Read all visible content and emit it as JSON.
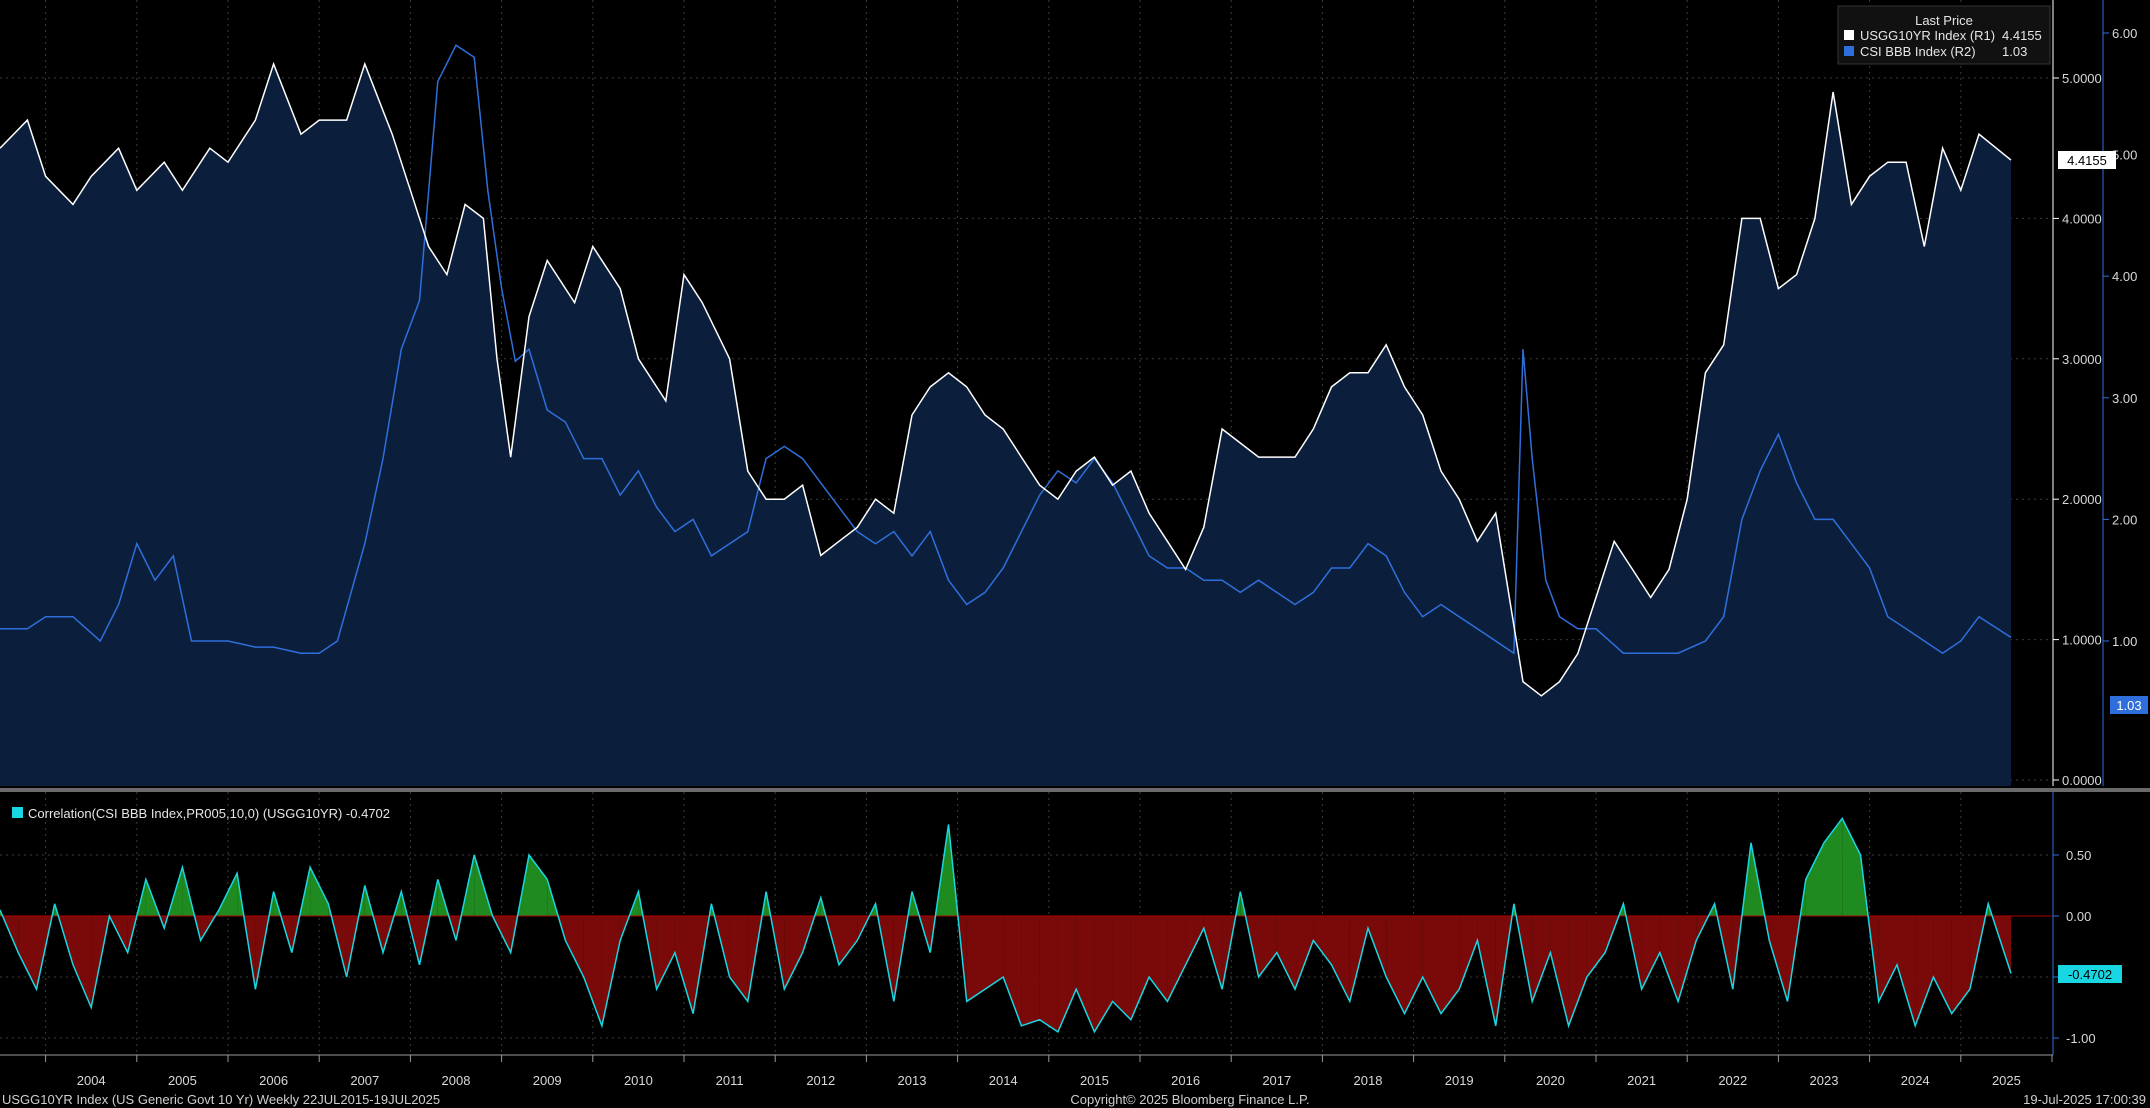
{
  "chart_data": [
    {
      "type": "line",
      "legend": {
        "title": "Last Price",
        "placement": "top-right",
        "entries": [
          {
            "label": "USGG10YR Index  (R1)",
            "value": "4.4155",
            "color": "#ffffff"
          },
          {
            "label": "CSI BBB Index  (R2)",
            "value": "1.03",
            "color": "#2f6fdb"
          }
        ]
      },
      "x_tick_labels": [
        "2004",
        "2005",
        "2006",
        "2007",
        "2008",
        "2009",
        "2010",
        "2011",
        "2012",
        "2013",
        "2014",
        "2015",
        "2016",
        "2017",
        "2018",
        "2019",
        "2020",
        "2021",
        "2022",
        "2023",
        "2024",
        "2025"
      ],
      "axis_r1": {
        "ticks": [
          "0.0000",
          "1.0000",
          "2.0000",
          "3.0000",
          "4.0000",
          "5.0000"
        ],
        "ylim": [
          0,
          5.0
        ],
        "last_label": "4.4155",
        "color": "#ffffff"
      },
      "axis_r2": {
        "ticks": [
          "1.00",
          "2.00",
          "3.00",
          "4.00",
          "5.00",
          "6.00"
        ],
        "ylim": [
          0.2,
          6.0
        ],
        "last_label": "1.03",
        "color": "#2f6fdb"
      },
      "grid": true,
      "series": [
        {
          "name": "USGG10YR Index",
          "axis": "R1",
          "color": "#ffffff",
          "area_fill": "#0b1f3d",
          "x": [
            2003.5,
            2003.8,
            2004.0,
            2004.3,
            2004.5,
            2004.8,
            2005.0,
            2005.3,
            2005.5,
            2005.8,
            2006.0,
            2006.3,
            2006.5,
            2006.8,
            2007.0,
            2007.3,
            2007.5,
            2007.8,
            2008.0,
            2008.2,
            2008.4,
            2008.6,
            2008.8,
            2008.95,
            2009.1,
            2009.3,
            2009.5,
            2009.8,
            2010.0,
            2010.3,
            2010.5,
            2010.8,
            2011.0,
            2011.2,
            2011.5,
            2011.7,
            2011.9,
            2012.1,
            2012.3,
            2012.5,
            2012.7,
            2012.9,
            2013.1,
            2013.3,
            2013.5,
            2013.7,
            2013.9,
            2014.1,
            2014.3,
            2014.5,
            2014.7,
            2014.9,
            2015.1,
            2015.3,
            2015.5,
            2015.7,
            2015.9,
            2016.1,
            2016.3,
            2016.5,
            2016.7,
            2016.9,
            2017.1,
            2017.3,
            2017.5,
            2017.7,
            2017.9,
            2018.1,
            2018.3,
            2018.5,
            2018.7,
            2018.9,
            2019.1,
            2019.3,
            2019.5,
            2019.7,
            2019.9,
            2020.1,
            2020.2,
            2020.4,
            2020.6,
            2020.8,
            2021.0,
            2021.2,
            2021.4,
            2021.6,
            2021.8,
            2022.0,
            2022.2,
            2022.4,
            2022.6,
            2022.8,
            2023.0,
            2023.2,
            2023.4,
            2023.6,
            2023.8,
            2024.0,
            2024.2,
            2024.4,
            2024.6,
            2024.8,
            2025.0,
            2025.2,
            2025.55
          ],
          "values": [
            4.5,
            4.7,
            4.3,
            4.1,
            4.3,
            4.5,
            4.2,
            4.4,
            4.2,
            4.5,
            4.4,
            4.7,
            5.1,
            4.6,
            4.7,
            4.7,
            5.1,
            4.6,
            4.2,
            3.8,
            3.6,
            4.1,
            4.0,
            3.0,
            2.3,
            3.3,
            3.7,
            3.4,
            3.8,
            3.5,
            3.0,
            2.7,
            3.6,
            3.4,
            3.0,
            2.2,
            2.0,
            2.0,
            2.1,
            1.6,
            1.7,
            1.8,
            2.0,
            1.9,
            2.6,
            2.8,
            2.9,
            2.8,
            2.6,
            2.5,
            2.3,
            2.1,
            2.0,
            2.2,
            2.3,
            2.1,
            2.2,
            1.9,
            1.7,
            1.5,
            1.8,
            2.5,
            2.4,
            2.3,
            2.3,
            2.3,
            2.5,
            2.8,
            2.9,
            2.9,
            3.1,
            2.8,
            2.6,
            2.2,
            2.0,
            1.7,
            1.9,
            1.1,
            0.7,
            0.6,
            0.7,
            0.9,
            1.3,
            1.7,
            1.5,
            1.3,
            1.5,
            2.0,
            2.9,
            3.1,
            4.0,
            4.0,
            3.5,
            3.6,
            4.0,
            4.9,
            4.1,
            4.3,
            4.4,
            4.4,
            3.8,
            4.5,
            4.2,
            4.6,
            4.4155
          ]
        },
        {
          "name": "CSI BBB Index",
          "axis": "R2",
          "color": "#2f6fdb",
          "x": [
            2003.5,
            2003.8,
            2004.0,
            2004.3,
            2004.6,
            2004.8,
            2005.0,
            2005.2,
            2005.4,
            2005.6,
            2005.8,
            2006.0,
            2006.3,
            2006.5,
            2006.8,
            2007.0,
            2007.2,
            2007.5,
            2007.7,
            2007.9,
            2008.1,
            2008.3,
            2008.5,
            2008.7,
            2008.85,
            2009.0,
            2009.15,
            2009.3,
            2009.5,
            2009.7,
            2009.9,
            2010.1,
            2010.3,
            2010.5,
            2010.7,
            2010.9,
            2011.1,
            2011.3,
            2011.5,
            2011.7,
            2011.9,
            2012.1,
            2012.3,
            2012.5,
            2012.7,
            2012.9,
            2013.1,
            2013.3,
            2013.5,
            2013.7,
            2013.9,
            2014.1,
            2014.3,
            2014.5,
            2014.7,
            2014.9,
            2015.1,
            2015.3,
            2015.5,
            2015.7,
            2015.9,
            2016.1,
            2016.3,
            2016.5,
            2016.7,
            2016.9,
            2017.1,
            2017.3,
            2017.5,
            2017.7,
            2017.9,
            2018.1,
            2018.3,
            2018.5,
            2018.7,
            2018.9,
            2019.1,
            2019.3,
            2019.5,
            2019.7,
            2019.9,
            2020.1,
            2020.2,
            2020.3,
            2020.45,
            2020.6,
            2020.8,
            2021.0,
            2021.3,
            2021.6,
            2021.9,
            2022.2,
            2022.4,
            2022.6,
            2022.8,
            2023.0,
            2023.2,
            2023.4,
            2023.6,
            2023.8,
            2024.0,
            2024.2,
            2024.4,
            2024.6,
            2024.8,
            2025.0,
            2025.2,
            2025.55
          ],
          "values": [
            1.1,
            1.1,
            1.2,
            1.2,
            1.0,
            1.3,
            1.8,
            1.5,
            1.7,
            1.0,
            1.0,
            1.0,
            0.95,
            0.95,
            0.9,
            0.9,
            1.0,
            1.8,
            2.5,
            3.4,
            3.8,
            5.6,
            5.9,
            5.8,
            4.7,
            3.9,
            3.3,
            3.4,
            2.9,
            2.8,
            2.5,
            2.5,
            2.2,
            2.4,
            2.1,
            1.9,
            2.0,
            1.7,
            1.8,
            1.9,
            2.5,
            2.6,
            2.5,
            2.3,
            2.1,
            1.9,
            1.8,
            1.9,
            1.7,
            1.9,
            1.5,
            1.3,
            1.4,
            1.6,
            1.9,
            2.2,
            2.4,
            2.3,
            2.5,
            2.3,
            2.0,
            1.7,
            1.6,
            1.6,
            1.5,
            1.5,
            1.4,
            1.5,
            1.4,
            1.3,
            1.4,
            1.6,
            1.6,
            1.8,
            1.7,
            1.4,
            1.2,
            1.3,
            1.2,
            1.1,
            1.0,
            0.9,
            3.4,
            2.5,
            1.5,
            1.2,
            1.1,
            1.1,
            0.9,
            0.9,
            0.9,
            1.0,
            1.2,
            2.0,
            2.4,
            2.7,
            2.3,
            2.0,
            2.0,
            1.8,
            1.6,
            1.2,
            1.1,
            1.0,
            0.9,
            1.0,
            1.2,
            1.03
          ]
        }
      ]
    },
    {
      "type": "area",
      "title": "Correlation(CSI BBB Index,PR005,10,0) (USGG10YR) -0.4702",
      "legend_color": "#19d7e2",
      "axis": {
        "ticks": [
          "-1.00",
          "-0.50",
          "0.00",
          "0.50"
        ],
        "ylim": [
          -1.1,
          0.85
        ],
        "last_label": "-0.4702"
      },
      "positive_fill": "#1f8a1f",
      "negative_fill": "#7a0a0a",
      "line_color": "#19d7e2",
      "series": [
        {
          "name": "Correlation",
          "x": [
            2003.5,
            2003.7,
            2003.9,
            2004.1,
            2004.3,
            2004.5,
            2004.7,
            2004.9,
            2005.1,
            2005.3,
            2005.5,
            2005.7,
            2005.9,
            2006.1,
            2006.3,
            2006.5,
            2006.7,
            2006.9,
            2007.1,
            2007.3,
            2007.5,
            2007.7,
            2007.9,
            2008.1,
            2008.3,
            2008.5,
            2008.7,
            2008.9,
            2009.1,
            2009.3,
            2009.5,
            2009.7,
            2009.9,
            2010.1,
            2010.3,
            2010.5,
            2010.7,
            2010.9,
            2011.1,
            2011.3,
            2011.5,
            2011.7,
            2011.9,
            2012.1,
            2012.3,
            2012.5,
            2012.7,
            2012.9,
            2013.1,
            2013.3,
            2013.5,
            2013.7,
            2013.9,
            2014.1,
            2014.3,
            2014.5,
            2014.7,
            2014.9,
            2015.1,
            2015.3,
            2015.5,
            2015.7,
            2015.9,
            2016.1,
            2016.3,
            2016.5,
            2016.7,
            2016.9,
            2017.1,
            2017.3,
            2017.5,
            2017.7,
            2017.9,
            2018.1,
            2018.3,
            2018.5,
            2018.7,
            2018.9,
            2019.1,
            2019.3,
            2019.5,
            2019.7,
            2019.9,
            2020.1,
            2020.3,
            2020.5,
            2020.7,
            2020.9,
            2021.1,
            2021.3,
            2021.5,
            2021.7,
            2021.9,
            2022.1,
            2022.3,
            2022.5,
            2022.7,
            2022.9,
            2023.1,
            2023.3,
            2023.5,
            2023.7,
            2023.9,
            2024.1,
            2024.3,
            2024.5,
            2024.7,
            2024.9,
            2025.1,
            2025.3,
            2025.55
          ],
          "values": [
            0.05,
            -0.3,
            -0.6,
            0.1,
            -0.4,
            -0.75,
            0.0,
            -0.3,
            0.3,
            -0.1,
            0.4,
            -0.2,
            0.05,
            0.35,
            -0.6,
            0.2,
            -0.3,
            0.4,
            0.1,
            -0.5,
            0.25,
            -0.3,
            0.2,
            -0.4,
            0.3,
            -0.2,
            0.5,
            0.0,
            -0.3,
            0.5,
            0.3,
            -0.2,
            -0.5,
            -0.9,
            -0.2,
            0.2,
            -0.6,
            -0.3,
            -0.8,
            0.1,
            -0.5,
            -0.7,
            0.2,
            -0.6,
            -0.3,
            0.15,
            -0.4,
            -0.2,
            0.1,
            -0.7,
            0.2,
            -0.3,
            0.75,
            -0.7,
            -0.6,
            -0.5,
            -0.9,
            -0.85,
            -0.95,
            -0.6,
            -0.95,
            -0.7,
            -0.85,
            -0.5,
            -0.7,
            -0.4,
            -0.1,
            -0.6,
            0.2,
            -0.5,
            -0.3,
            -0.6,
            -0.2,
            -0.4,
            -0.7,
            -0.1,
            -0.5,
            -0.8,
            -0.5,
            -0.8,
            -0.6,
            -0.2,
            -0.9,
            0.1,
            -0.7,
            -0.3,
            -0.9,
            -0.5,
            -0.3,
            0.1,
            -0.6,
            -0.3,
            -0.7,
            -0.2,
            0.1,
            -0.6,
            0.6,
            -0.2,
            -0.7,
            0.3,
            0.6,
            0.8,
            0.5,
            -0.7,
            -0.4,
            -0.9,
            -0.5,
            -0.8,
            -0.6,
            0.1,
            -0.4702
          ]
        }
      ]
    }
  ],
  "footer": {
    "left": "USGG10YR Index (US Generic Govt 10 Yr)  Weekly 22JUL2015-19JUL2025",
    "center": "Copyright© 2025 Bloomberg Finance L.P.",
    "right": "19-Jul-2025 17:00:39"
  }
}
